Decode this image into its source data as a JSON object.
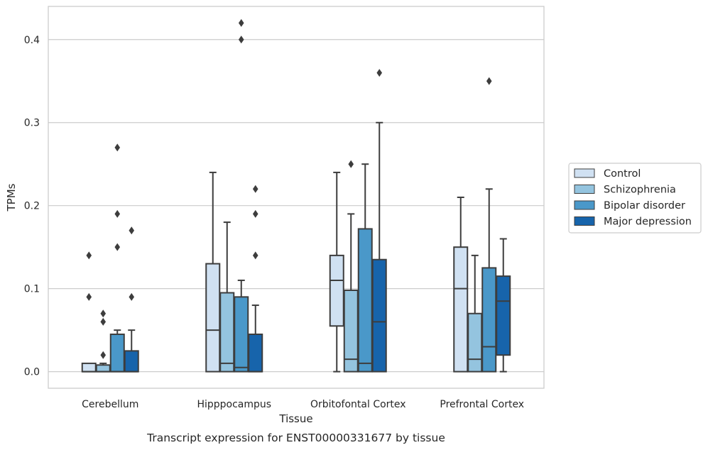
{
  "chart_data": {
    "type": "boxplot",
    "xlabel": "Tissue",
    "ylabel": "TPMs",
    "caption": "Transcript expression for ENST00000331677 by tissue",
    "ylim": [
      -0.02,
      0.44
    ],
    "yticks": [
      0.0,
      0.1,
      0.2,
      0.3,
      0.4
    ],
    "ytick_labels": [
      "0.0",
      "0.1",
      "0.2",
      "0.3",
      "0.4"
    ],
    "grid": "horizontal",
    "legend_position": "right",
    "categories": [
      "Cerebellum",
      "Hipppocampus",
      "Orbitofontal Cortex",
      "Prefrontal Cortex"
    ],
    "series": [
      {
        "name": "Control",
        "color": "#d0e1f2",
        "boxes": [
          {
            "q1": 0.0,
            "median": 0.0,
            "q3": 0.01,
            "whislo": 0.0,
            "whishi": 0.01,
            "fliers": [
              0.09,
              0.14
            ]
          },
          {
            "q1": 0.0,
            "median": 0.05,
            "q3": 0.13,
            "whislo": 0.0,
            "whishi": 0.24,
            "fliers": []
          },
          {
            "q1": 0.055,
            "median": 0.11,
            "q3": 0.14,
            "whislo": 0.0,
            "whishi": 0.24,
            "fliers": []
          },
          {
            "q1": 0.0,
            "median": 0.1,
            "q3": 0.15,
            "whislo": 0.0,
            "whishi": 0.21,
            "fliers": []
          }
        ]
      },
      {
        "name": "Schizophrenia",
        "color": "#94c4df",
        "boxes": [
          {
            "q1": 0.0,
            "median": 0.0,
            "q3": 0.008,
            "whislo": 0.0,
            "whishi": 0.01,
            "fliers": [
              0.02,
              0.06,
              0.07
            ]
          },
          {
            "q1": 0.0,
            "median": 0.01,
            "q3": 0.095,
            "whislo": 0.0,
            "whishi": 0.18,
            "fliers": []
          },
          {
            "q1": 0.0,
            "median": 0.015,
            "q3": 0.098,
            "whislo": 0.0,
            "whishi": 0.19,
            "fliers": [
              0.25
            ]
          },
          {
            "q1": 0.0,
            "median": 0.015,
            "q3": 0.07,
            "whislo": 0.0,
            "whishi": 0.14,
            "fliers": []
          }
        ]
      },
      {
        "name": "Bipolar disorder",
        "color": "#4a98c9",
        "boxes": [
          {
            "q1": 0.0,
            "median": 0.0,
            "q3": 0.045,
            "whislo": 0.0,
            "whishi": 0.05,
            "fliers": [
              0.15,
              0.19,
              0.27
            ]
          },
          {
            "q1": 0.0,
            "median": 0.005,
            "q3": 0.09,
            "whislo": 0.0,
            "whishi": 0.11,
            "fliers": [
              0.4,
              0.42
            ]
          },
          {
            "q1": 0.0,
            "median": 0.01,
            "q3": 0.172,
            "whislo": 0.0,
            "whishi": 0.25,
            "fliers": []
          },
          {
            "q1": 0.0,
            "median": 0.03,
            "q3": 0.125,
            "whislo": 0.0,
            "whishi": 0.22,
            "fliers": [
              0.35
            ]
          }
        ]
      },
      {
        "name": "Major depression",
        "color": "#1764ab",
        "boxes": [
          {
            "q1": 0.0,
            "median": 0.0,
            "q3": 0.025,
            "whislo": 0.0,
            "whishi": 0.05,
            "fliers": [
              0.09,
              0.17
            ]
          },
          {
            "q1": 0.0,
            "median": 0.0,
            "q3": 0.045,
            "whislo": 0.0,
            "whishi": 0.08,
            "fliers": [
              0.14,
              0.19,
              0.22
            ]
          },
          {
            "q1": 0.0,
            "median": 0.06,
            "q3": 0.135,
            "whislo": 0.0,
            "whishi": 0.3,
            "fliers": [
              0.36
            ]
          },
          {
            "q1": 0.02,
            "median": 0.085,
            "q3": 0.115,
            "whislo": 0.0,
            "whishi": 0.16,
            "fliers": []
          }
        ]
      }
    ]
  }
}
